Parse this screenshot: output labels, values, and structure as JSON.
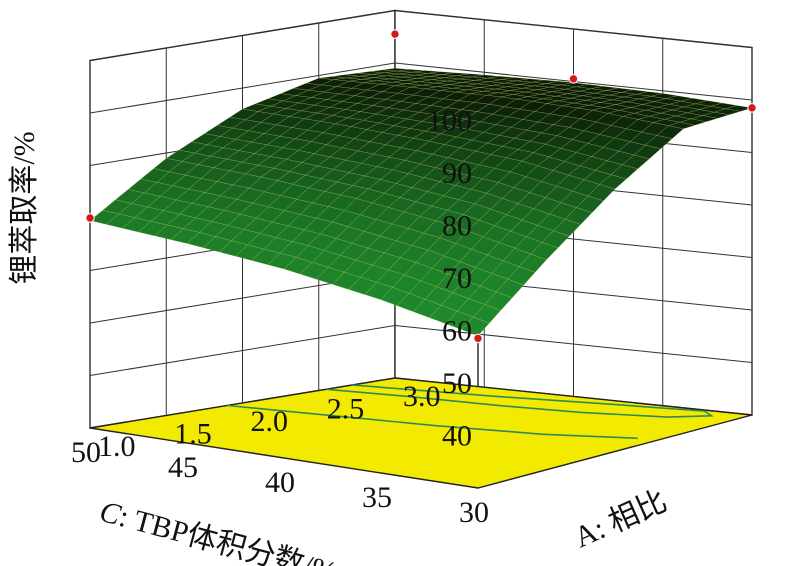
{
  "chart_data": {
    "type": "surface3d",
    "title": "",
    "zlabel": "锂萃取率/%",
    "xlabel": {
      "prefix": "C",
      "text": ": TBP体积分数/%"
    },
    "ylabel": {
      "prefix": "A",
      "text": ": 相比"
    },
    "z_ticks": [
      "100",
      "90",
      "80",
      "70",
      "60",
      "50",
      "40"
    ],
    "c_ticks": [
      "50",
      "45",
      "40",
      "35",
      "30"
    ],
    "a_ticks": [
      "1.0",
      "1.5",
      "2.0",
      "2.5",
      "3.0"
    ],
    "zlim": [
      30,
      100
    ],
    "c_range": [
      30,
      50
    ],
    "a_range": [
      1.0,
      3.0
    ],
    "surface_grid": {
      "c": [
        50,
        45,
        40,
        35,
        30
      ],
      "a": [
        1.0,
        1.5,
        2.0,
        2.5,
        3.0
      ],
      "z": [
        [
          69.5,
          79.0,
          86.0,
          89.5,
          89.0
        ],
        [
          68.0,
          78.0,
          85.5,
          89.8,
          89.5
        ],
        [
          66.0,
          76.5,
          84.5,
          90.0,
          89.8
        ],
        [
          63.0,
          74.0,
          83.0,
          89.5,
          89.5
        ],
        [
          59.0,
          70.0,
          80.0,
          88.0,
          88.5
        ]
      ]
    },
    "design_points": [
      {
        "c": 50,
        "a": 1.0,
        "z": 70.0
      },
      {
        "c": 30,
        "a": 1.0,
        "z": 58.5
      },
      {
        "c": 30,
        "a": 3.0,
        "z": 88.5
      },
      {
        "c": 50,
        "a": 3.0,
        "z": 95.5
      },
      {
        "c": 40,
        "a": 3.0,
        "z": 90.5
      }
    ],
    "colors": {
      "surface_low": "#1f8a2c",
      "surface_high": "#000000",
      "floor": "#f2ea00",
      "contour": "#2e8b57",
      "point": "#d21a1a"
    }
  }
}
